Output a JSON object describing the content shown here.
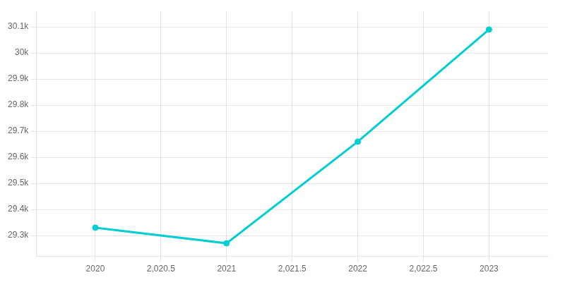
{
  "chart_data": {
    "type": "line",
    "x": [
      2020,
      2021,
      2022,
      2023
    ],
    "values": [
      29330,
      29270,
      29660,
      30090
    ],
    "color": "#00CED1",
    "marker": "circle",
    "xlim": [
      2019.55,
      2023.45
    ],
    "xticks": [
      2020,
      {
        "value": 2020.5,
        "label": "2,020.5"
      },
      2021,
      {
        "value": 2021.5,
        "label": "2,021.5"
      },
      2022,
      {
        "value": 2022.5,
        "label": "2,022.5"
      },
      2023
    ],
    "ylim": [
      29220,
      30160
    ],
    "yticks": [
      {
        "value": 29300,
        "label": "29.3k"
      },
      {
        "value": 29400,
        "label": "29.4k"
      },
      {
        "value": 29500,
        "label": "29.5k"
      },
      {
        "value": 29600,
        "label": "29.6k"
      },
      {
        "value": 29700,
        "label": "29.7k"
      },
      {
        "value": 29800,
        "label": "29.8k"
      },
      {
        "value": 29900,
        "label": "29.9k"
      },
      {
        "value": 30000,
        "label": "30k"
      },
      {
        "value": 30100,
        "label": "30.1k"
      }
    ],
    "grid": true
  }
}
